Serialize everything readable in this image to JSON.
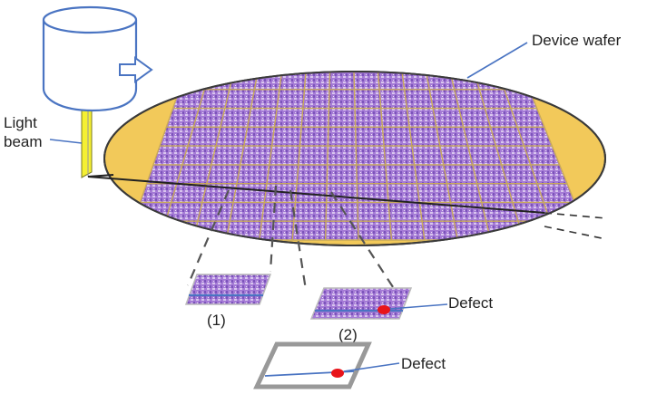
{
  "labels": {
    "device_wafer": "Device wafer",
    "light_beam_line1": "Light",
    "light_beam_line2": "beam",
    "view1": "(1)",
    "view2": "(2)",
    "defect_a": "Defect",
    "defect_b": "Defect"
  },
  "colors": {
    "wafer_rim": "#f2c95a",
    "wafer_edge": "#3a3a3a",
    "die_fill": "#a97ad8",
    "die_grid": "#d9c9e9",
    "street": "#c9b06a",
    "beam": "#f5f032",
    "source_outline": "#4a74c2",
    "leader": "#4a74c2",
    "defect": "#e8141a",
    "dash": "#555555"
  },
  "icons": {
    "light_source": "cylinder-light-source-icon",
    "direction_arrow": "arrow-right-icon"
  }
}
